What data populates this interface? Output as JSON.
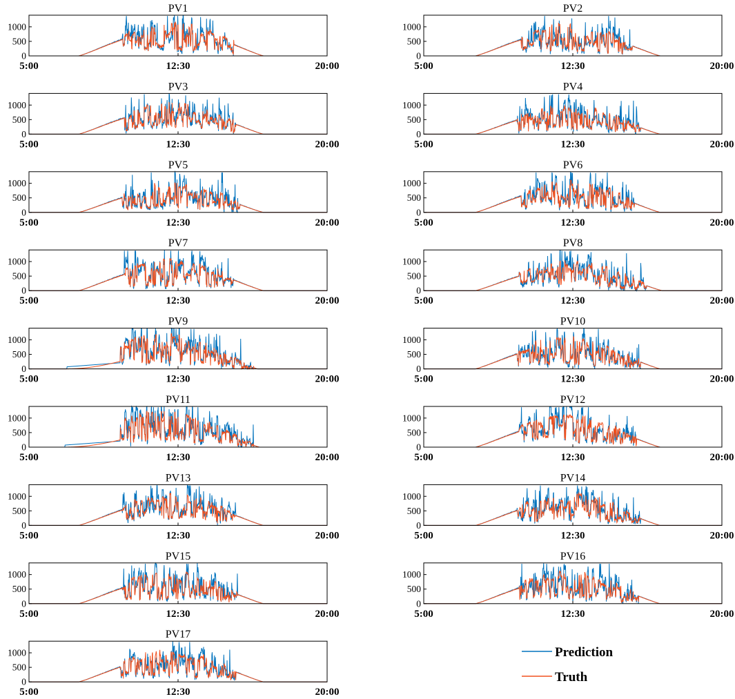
{
  "chart_data": {
    "type": "line",
    "layout": "small-multiples",
    "ylim": [
      0,
      1400
    ],
    "xlim_hours": [
      5,
      20
    ],
    "y_ticks": [
      {
        "value": 0,
        "label": "0"
      },
      {
        "value": 500,
        "label": "500"
      },
      {
        "value": 1000,
        "label": "1000"
      }
    ],
    "x_ticks": [
      {
        "value": 5,
        "label": "5:00"
      },
      {
        "value": 12.5,
        "label": "12:30"
      },
      {
        "value": 20,
        "label": "20:00"
      }
    ],
    "series_style": {
      "Prediction": "#0072BD",
      "Truth": "#F0501E"
    },
    "legend": {
      "placement": "bottom-right",
      "entries": [
        {
          "name": "Prediction",
          "color": "#0072BD"
        },
        {
          "name": "Truth",
          "color": "#F0501E"
        }
      ]
    },
    "panels": [
      {
        "title": "PV1",
        "profile": {
          "start": 7.5,
          "end": 16.8,
          "peak": 900,
          "volatile_from": 9.7,
          "volatile_to": 15.3,
          "seed": 11
        }
      },
      {
        "title": "PV2",
        "profile": {
          "start": 7.6,
          "end": 16.9,
          "peak": 850,
          "volatile_from": 9.9,
          "volatile_to": 15.5,
          "seed": 12
        }
      },
      {
        "title": "PV3",
        "profile": {
          "start": 7.5,
          "end": 16.8,
          "peak": 850,
          "volatile_from": 9.8,
          "volatile_to": 15.4,
          "seed": 13
        }
      },
      {
        "title": "PV4",
        "profile": {
          "start": 7.6,
          "end": 16.9,
          "peak": 800,
          "volatile_from": 9.7,
          "volatile_to": 15.9,
          "seed": 14
        }
      },
      {
        "title": "PV5",
        "profile": {
          "start": 7.5,
          "end": 16.8,
          "peak": 800,
          "volatile_from": 9.7,
          "volatile_to": 15.6,
          "seed": 15
        }
      },
      {
        "title": "PV6",
        "profile": {
          "start": 7.6,
          "end": 16.9,
          "peak": 850,
          "volatile_from": 9.9,
          "volatile_to": 15.6,
          "seed": 16
        }
      },
      {
        "title": "PV7",
        "profile": {
          "start": 7.5,
          "end": 16.8,
          "peak": 850,
          "volatile_from": 9.8,
          "volatile_to": 15.3,
          "seed": 17
        }
      },
      {
        "title": "PV8",
        "profile": {
          "start": 7.6,
          "end": 17.0,
          "peak": 800,
          "volatile_from": 9.8,
          "volatile_to": 16.2,
          "seed": 18
        }
      },
      {
        "title": "PV9",
        "profile": {
          "start": 6.9,
          "end": 16.5,
          "peak": 1000,
          "volatile_from": 9.6,
          "volatile_to": 16.3,
          "seed": 19,
          "early_shift": true
        }
      },
      {
        "title": "PV10",
        "profile": {
          "start": 7.6,
          "end": 16.9,
          "peak": 850,
          "volatile_from": 9.7,
          "volatile_to": 15.9,
          "seed": 20
        }
      },
      {
        "title": "PV11",
        "profile": {
          "start": 6.8,
          "end": 16.6,
          "peak": 950,
          "volatile_from": 9.6,
          "volatile_to": 16.3,
          "seed": 21,
          "early_shift": true
        }
      },
      {
        "title": "PV12",
        "profile": {
          "start": 7.6,
          "end": 16.9,
          "peak": 850,
          "volatile_from": 9.8,
          "volatile_to": 15.7,
          "seed": 22
        }
      },
      {
        "title": "PV13",
        "profile": {
          "start": 7.5,
          "end": 16.8,
          "peak": 850,
          "volatile_from": 9.7,
          "volatile_to": 15.4,
          "seed": 23
        }
      },
      {
        "title": "PV14",
        "profile": {
          "start": 7.6,
          "end": 16.9,
          "peak": 850,
          "volatile_from": 9.7,
          "volatile_to": 15.9,
          "seed": 24
        }
      },
      {
        "title": "PV15",
        "profile": {
          "start": 7.5,
          "end": 16.8,
          "peak": 850,
          "volatile_from": 9.7,
          "volatile_to": 15.5,
          "seed": 25
        }
      },
      {
        "title": "PV16",
        "profile": {
          "start": 7.6,
          "end": 16.9,
          "peak": 850,
          "volatile_from": 9.8,
          "volatile_to": 15.8,
          "seed": 26
        }
      },
      {
        "title": "PV17",
        "profile": {
          "start": 7.5,
          "end": 16.8,
          "peak": 850,
          "volatile_from": 9.6,
          "volatile_to": 15.4,
          "seed": 27
        }
      }
    ]
  }
}
